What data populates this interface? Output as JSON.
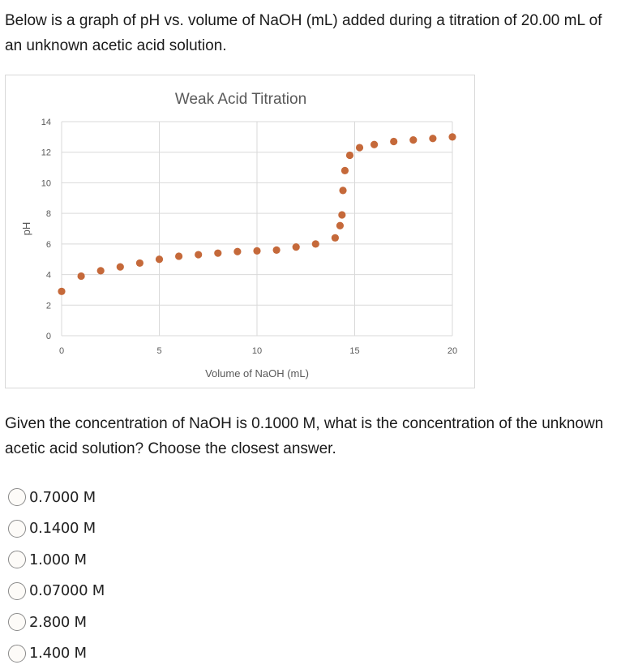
{
  "question": {
    "intro": "Below is a graph of pH vs. volume of NaOH (mL) added during a titration of 20.00 mL of an unknown acetic acid solution.",
    "prompt": "Given the concentration of NaOH is 0.1000 M, what is the concentration of the unknown acetic acid solution? Choose the closest answer."
  },
  "choices": [
    {
      "label": "0.7000 M"
    },
    {
      "label": "0.1400 M"
    },
    {
      "label": "1.000 M"
    },
    {
      "label": "0.07000 M"
    },
    {
      "label": "2.800 M"
    },
    {
      "label": "1.400 M"
    }
  ],
  "colors": {
    "marker": "#c5693a",
    "grid": "#d9d9d9",
    "text": "#595959"
  },
  "chart_data": {
    "type": "scatter",
    "title": "Weak Acid Titration",
    "xlabel": "Volume of NaOH (mL)",
    "ylabel": "pH",
    "xlim": [
      0,
      20
    ],
    "ylim": [
      0,
      14
    ],
    "xticks": [
      0,
      5,
      10,
      15,
      20
    ],
    "yticks": [
      0,
      2,
      4,
      6,
      8,
      10,
      12,
      14
    ],
    "grid": true,
    "legend": "none",
    "series": [
      {
        "name": "pH",
        "x": [
          0,
          1,
          2,
          3,
          4,
          5,
          6,
          7,
          8,
          9,
          10,
          11,
          12,
          13,
          14,
          14.25,
          14.35,
          14.4,
          14.5,
          14.75,
          15.25,
          16,
          17,
          18,
          19,
          20
        ],
        "y": [
          2.9,
          3.9,
          4.25,
          4.5,
          4.75,
          5.0,
          5.2,
          5.3,
          5.4,
          5.5,
          5.55,
          5.6,
          5.8,
          6.0,
          6.4,
          7.2,
          7.9,
          9.5,
          10.8,
          11.8,
          12.3,
          12.5,
          12.7,
          12.8,
          12.9,
          13.0
        ]
      }
    ]
  }
}
